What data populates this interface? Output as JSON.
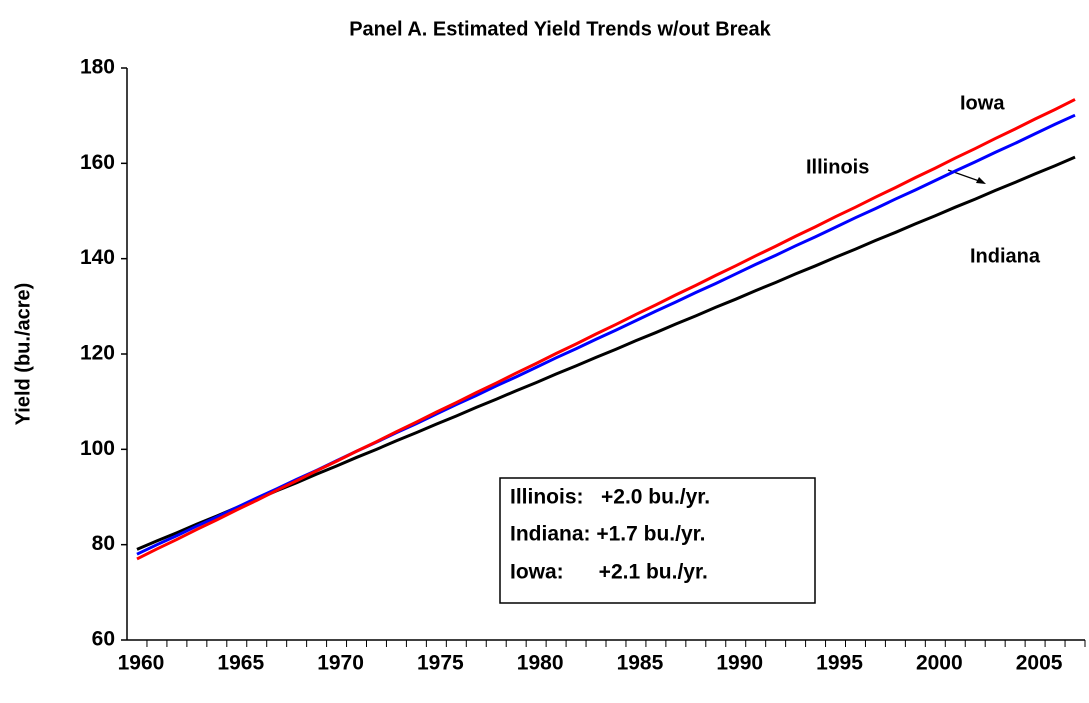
{
  "chart_data": {
    "type": "line",
    "title": "Panel A. Estimated Yield Trends w/out Break",
    "y_label": "Yield (bu./acre)",
    "categories": [
      "1960",
      null,
      null,
      null,
      null,
      "1965",
      null,
      null,
      null,
      null,
      "1970",
      null,
      null,
      null,
      null,
      "1975",
      null,
      null,
      null,
      null,
      "1980",
      null,
      null,
      null,
      null,
      "1985",
      null,
      null,
      null,
      null,
      "1990",
      null,
      null,
      null,
      null,
      "1995",
      null,
      null,
      null,
      null,
      "2000",
      null,
      null,
      null,
      null,
      "2005",
      null,
      null
    ],
    "series": [
      {
        "name": "Iowa",
        "color": "#ff0000",
        "values": [
          77.0,
          79.1,
          81.1,
          83.2,
          85.2,
          87.3,
          89.3,
          91.4,
          93.4,
          95.5,
          97.5,
          99.6,
          101.6,
          103.7,
          105.7,
          107.8,
          109.8,
          111.9,
          113.9,
          116.0,
          118.0,
          120.1,
          122.1,
          124.2,
          126.2,
          128.3,
          130.3,
          132.4,
          134.4,
          136.5,
          138.5,
          140.6,
          142.6,
          144.7,
          146.7,
          148.8,
          150.8,
          152.9,
          154.9,
          157.0,
          159.0,
          161.1,
          163.1,
          165.2,
          167.2,
          169.3,
          171.3,
          173.4
        ]
      },
      {
        "name": "Illinois",
        "color": "#0000ff",
        "values": [
          78.0,
          80.0,
          81.9,
          83.9,
          85.8,
          87.8,
          89.8,
          91.7,
          93.7,
          95.6,
          97.6,
          99.6,
          101.5,
          103.5,
          105.4,
          107.4,
          109.4,
          111.3,
          113.3,
          115.2,
          117.2,
          119.2,
          121.1,
          123.1,
          125.0,
          127.0,
          129.0,
          130.9,
          132.9,
          134.8,
          136.8,
          138.8,
          140.7,
          142.7,
          144.6,
          146.6,
          148.6,
          150.5,
          152.5,
          154.4,
          156.4,
          158.4,
          160.3,
          162.3,
          164.2,
          166.2,
          168.2,
          170.1
        ]
      },
      {
        "name": "Indiana",
        "color": "#000000",
        "values": [
          79.0,
          80.8,
          82.5,
          84.3,
          86.0,
          87.8,
          89.5,
          91.3,
          93.0,
          94.8,
          96.5,
          98.3,
          100.0,
          101.8,
          103.5,
          105.3,
          107.0,
          108.8,
          110.5,
          112.3,
          114.0,
          115.8,
          117.5,
          119.3,
          121.0,
          122.8,
          124.5,
          126.3,
          128.0,
          129.8,
          131.5,
          133.3,
          135.0,
          136.8,
          138.5,
          140.3,
          142.0,
          143.8,
          145.5,
          147.3,
          149.0,
          150.8,
          152.5,
          154.3,
          156.0,
          157.8,
          159.5,
          161.3
        ]
      }
    ],
    "annotations": [
      "Illinois:   +2.0 bu./yr.",
      "Indiana: +1.7 bu./yr.",
      "Iowa:      +2.1 bu./yr."
    ],
    "ylim": [
      60,
      180
    ],
    "yticks": [
      60,
      80,
      100,
      120,
      140,
      160,
      180
    ],
    "grid": false
  }
}
